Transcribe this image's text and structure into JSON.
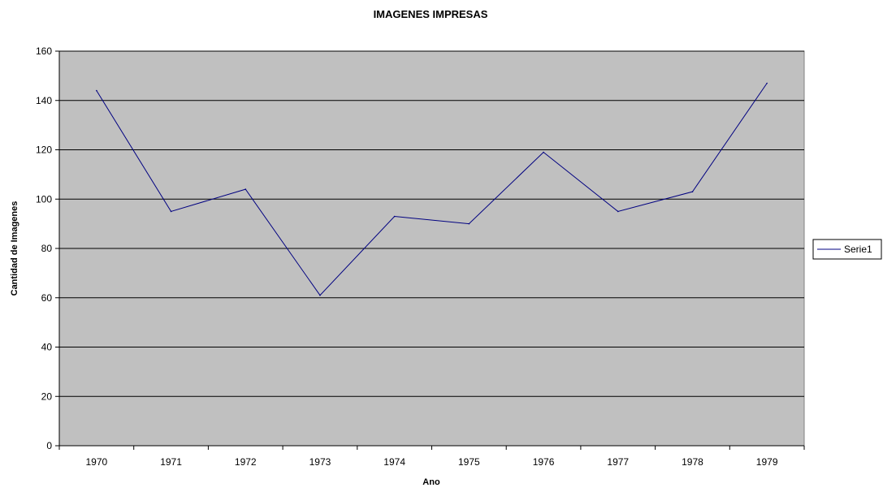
{
  "chart_data": {
    "type": "line",
    "title": "IMAGENES IMPRESAS",
    "xlabel": "Ano",
    "ylabel": "Cantidad de Imagenes",
    "categories": [
      "1970",
      "1971",
      "1972",
      "1973",
      "1974",
      "1975",
      "1976",
      "1977",
      "1978",
      "1979"
    ],
    "series": [
      {
        "name": "Serie1",
        "values": [
          144,
          95,
          104,
          61,
          93,
          90,
          119,
          95,
          103,
          147
        ],
        "color": "#000080"
      }
    ],
    "ylim": [
      0,
      160
    ],
    "yticks": [
      "0",
      "20",
      "40",
      "60",
      "80",
      "100",
      "120",
      "140",
      "160"
    ],
    "grid": true,
    "legend_position": "right",
    "colors": {
      "plot_background": "#c0c0c0",
      "gridline": "#000000",
      "line": "#000080"
    }
  }
}
